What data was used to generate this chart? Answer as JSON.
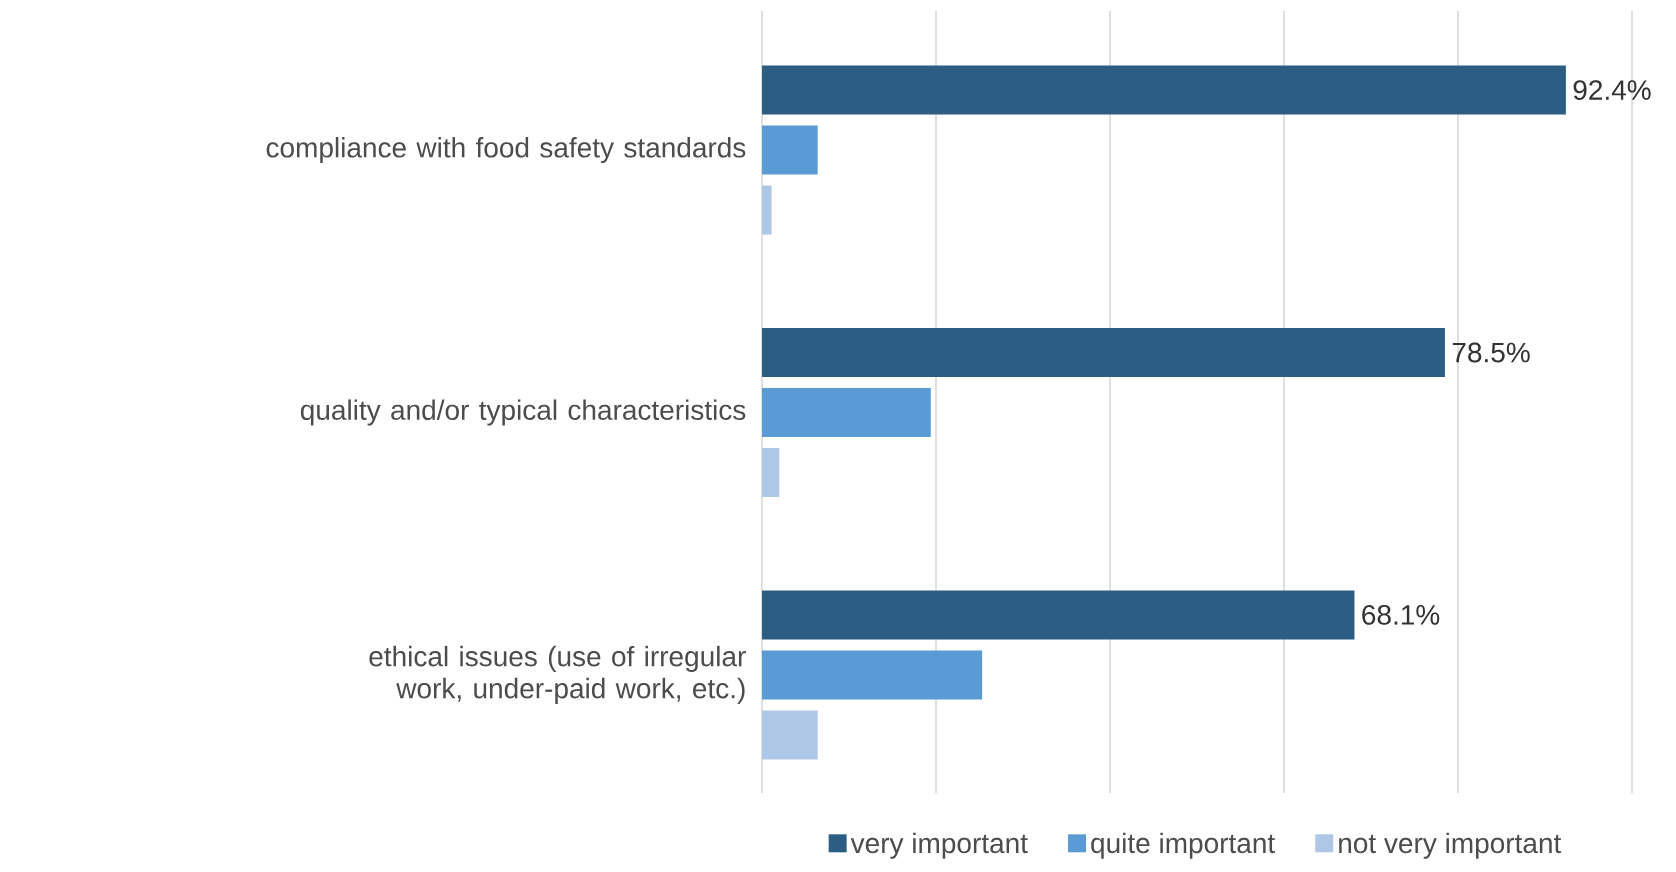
{
  "chart_data": {
    "type": "bar",
    "orientation": "horizontal",
    "categories": [
      "compliance with food safety standards",
      "quality and/or typical characteristics",
      "ethical issues (use of irregular work, under-paid work, etc.)"
    ],
    "series": [
      {
        "name": "very important",
        "color": "#2c5d83",
        "values": [
          92.4,
          78.5,
          68.1
        ],
        "value_labels": [
          "92.4%",
          "78.5%",
          "68.1%"
        ]
      },
      {
        "name": "quite important",
        "color": "#5b9bd5",
        "values": [
          6.4,
          19.4,
          25.3
        ]
      },
      {
        "name": "not very important",
        "color": "#aec7e6",
        "values": [
          1.1,
          2.0,
          6.4
        ]
      }
    ],
    "xlim": [
      0,
      100
    ],
    "xticks": [
      {
        "value": 0,
        "label": null
      },
      {
        "value": 20,
        "label": null
      },
      {
        "value": 40,
        "label": null
      },
      {
        "value": 60,
        "label": null
      },
      {
        "value": 80,
        "label": null
      },
      {
        "value": 100,
        "label": null
      }
    ],
    "grid": "x",
    "legend": "bottom",
    "tick_labels": "y"
  }
}
